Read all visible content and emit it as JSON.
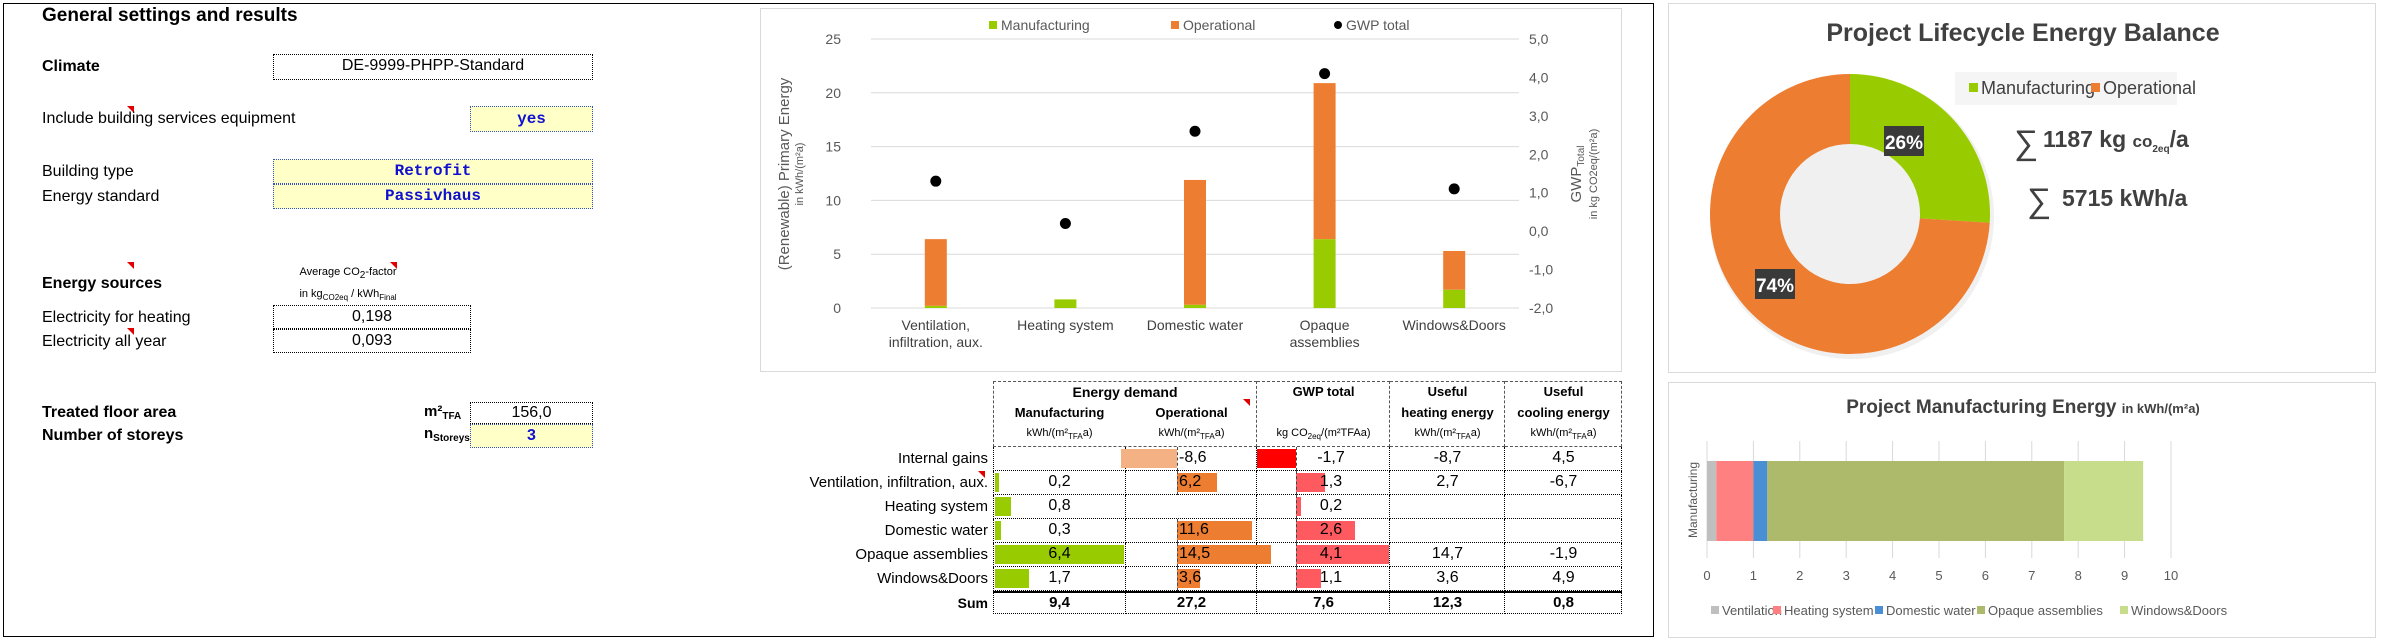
{
  "settings": {
    "title": "General settings and results",
    "climate_label": "Climate",
    "climate_value": "DE-9999-PHPP-Standard",
    "services_label": "Include building services equipment",
    "services_value": "yes",
    "building_type_label": "Building type",
    "building_type_value": "Retrofit",
    "energy_standard_label": "Energy standard",
    "energy_standard_value": "Passivhaus",
    "energy_sources_label": "Energy sources",
    "co2_header_line1_a": "Average CO",
    "co2_header_line1_sub": "2",
    "co2_header_line1_b": "-factor",
    "co2_header_line2_a": "in kg",
    "co2_header_line2_sub": "CO2eq",
    "co2_header_line2_b": " / kWh",
    "co2_header_line2_sub2": "Final",
    "elec_heating_label": "Electricity for heating",
    "elec_heating_value": "0,198",
    "elec_all_year_label": "Electricity all year",
    "elec_all_year_value": "0,093",
    "tfa_label": "Treated floor area",
    "tfa_unit_main": "m²",
    "tfa_unit_sub": "TFA",
    "tfa_value": "156,0",
    "storeys_label": "Number of storeys",
    "storeys_unit_main": "n",
    "storeys_unit_sub": "Storeys",
    "storeys_value": "3"
  },
  "table": {
    "group_header": "Energy demand",
    "columns": [
      {
        "title_line1": "Manufacturing",
        "title_line2": "",
        "unit_a": "kWh/(m²",
        "unit_sub": "TFA",
        "unit_b": "a)"
      },
      {
        "title_line1": "Operational",
        "title_line2": "",
        "unit_a": "kWh/(m²",
        "unit_sub": "TFA",
        "unit_b": "a)"
      },
      {
        "title_line1": "GWP total",
        "title_line2": "",
        "unit_a": "kg CO",
        "unit_sub": "2eq",
        "unit_b": "/(m²TFAa)"
      },
      {
        "title_line1": "Useful",
        "title_line2": "heating energy",
        "unit_a": "kWh/(m²",
        "unit_sub": "TFA",
        "unit_b": "a)"
      },
      {
        "title_line1": "Useful",
        "title_line2": "cooling energy",
        "unit_a": "kWh/(m²",
        "unit_sub": "TFA",
        "unit_b": "a)"
      }
    ],
    "rows": [
      {
        "label": "Internal gains",
        "manufacturing": "",
        "operational": "-8,6",
        "gwp": "-1,7",
        "heating": "-8,7",
        "cooling": "4,5"
      },
      {
        "label": "Ventilation, infiltration, aux.",
        "manufacturing": "0,2",
        "operational": "6,2",
        "gwp": "1,3",
        "heating": "2,7",
        "cooling": "-6,7"
      },
      {
        "label": "Heating system",
        "manufacturing": "0,8",
        "operational": "",
        "gwp": "0,2",
        "heating": "",
        "cooling": ""
      },
      {
        "label": "Domestic water",
        "manufacturing": "0,3",
        "operational": "11,6",
        "gwp": "2,6",
        "heating": "",
        "cooling": ""
      },
      {
        "label": "Opaque assemblies",
        "manufacturing": "6,4",
        "operational": "14,5",
        "gwp": "4,1",
        "heating": "14,7",
        "cooling": "-1,9"
      },
      {
        "label": "Windows&Doors",
        "manufacturing": "1,7",
        "operational": "3,6",
        "gwp": "1,1",
        "heating": "3,6",
        "cooling": "4,9"
      }
    ],
    "sum": {
      "label": "Sum",
      "manufacturing": "9,4",
      "operational": "27,2",
      "gwp": "7,6",
      "heating": "12,3",
      "cooling": "0,8"
    },
    "bar_values": {
      "manufacturing": [
        null,
        0.2,
        0.8,
        0.3,
        6.4,
        1.7
      ],
      "operational": [
        -8.6,
        6.2,
        null,
        11.6,
        14.5,
        3.6
      ],
      "gwp": [
        -1.7,
        1.3,
        0.2,
        2.6,
        4.1,
        1.1
      ]
    },
    "colors": {
      "manufacturing": "#99cc00",
      "operational": "#ed7d31",
      "operational_negative": "#f4b183",
      "gwp": "#ff5a5f",
      "gwp_negative": "#ff0000"
    }
  },
  "chart_data": [
    {
      "type": "bar",
      "stacked": true,
      "title": "",
      "categories": [
        "Ventilation, infiltration, aux.",
        "Heating system",
        "Domestic water",
        "Opaque assemblies",
        "Windows&Doors"
      ],
      "category_lines": [
        [
          "Ventilation,",
          "infiltration, aux."
        ],
        [
          "Heating system"
        ],
        [
          "Domestic water"
        ],
        [
          "Opaque",
          "assemblies"
        ],
        [
          "Windows&Doors"
        ]
      ],
      "series": [
        {
          "name": "Manufacturing",
          "values": [
            0.2,
            0.8,
            0.3,
            6.4,
            1.7
          ],
          "color": "#99cc00",
          "axis": "left"
        },
        {
          "name": "Operational",
          "values": [
            6.2,
            0,
            11.6,
            14.5,
            3.6
          ],
          "color": "#ed7d31",
          "axis": "left"
        },
        {
          "name": "GWP total",
          "values": [
            1.3,
            0.2,
            2.6,
            4.1,
            1.1
          ],
          "color": "#000000",
          "axis": "right",
          "type": "scatter"
        }
      ],
      "ylabel": "(Renewable) Primary Energy",
      "ylabel_sub": "in kWh/(m²a)",
      "ylim": [
        0,
        25
      ],
      "yticks": [
        "0",
        "5",
        "10",
        "15",
        "20",
        "25"
      ],
      "y2label_main": "GWP",
      "y2label_sub": "Total",
      "y2label_line2": "in kg CO2eq/(m²a)",
      "y2lim": [
        -2.0,
        5.0
      ],
      "y2ticks": [
        "-2,0",
        "-1,0",
        "0,0",
        "1,0",
        "2,0",
        "3,0",
        "4,0",
        "5,0"
      ],
      "legend": "top",
      "grid": true
    },
    {
      "type": "pie",
      "donut": true,
      "title": "Project Lifecycle Energy Balance",
      "categories": [
        "Manufacturing",
        "Operational"
      ],
      "values": [
        26,
        74
      ],
      "labels": [
        "26%",
        "74%"
      ],
      "colors": [
        "#99cc00",
        "#ed7d31"
      ],
      "legend": "top-right",
      "annotations": {
        "gwp_sum_value": "1187 kg",
        "gwp_sum_unit_a": "co",
        "gwp_sum_unit_sub": "2eq",
        "gwp_sum_unit_b": "/a",
        "energy_sum": "5715 kWh/a",
        "sum_symbol": "∑"
      }
    },
    {
      "type": "bar",
      "orientation": "horizontal",
      "stacked": true,
      "title": "Project Manufacturing Energy",
      "title_unit": "in kWh/(m²a)",
      "categories": [
        "Manufacturing"
      ],
      "series": [
        {
          "name": "Ventilation",
          "values": [
            0.2
          ],
          "color": "#bfbfbf"
        },
        {
          "name": "Heating system",
          "values": [
            0.8
          ],
          "color": "#ff8080"
        },
        {
          "name": "Domestic water",
          "values": [
            0.3
          ],
          "color": "#4a8fd4"
        },
        {
          "name": "Opaque assemblies",
          "values": [
            6.4
          ],
          "color": "#adb96b"
        },
        {
          "name": "Windows&Doors",
          "values": [
            1.7
          ],
          "color": "#c8dd8c"
        }
      ],
      "xlim": [
        0,
        10
      ],
      "xticks": [
        "0",
        "1",
        "2",
        "3",
        "4",
        "5",
        "6",
        "7",
        "8",
        "9",
        "10"
      ],
      "legend": "bottom",
      "grid": true
    }
  ]
}
